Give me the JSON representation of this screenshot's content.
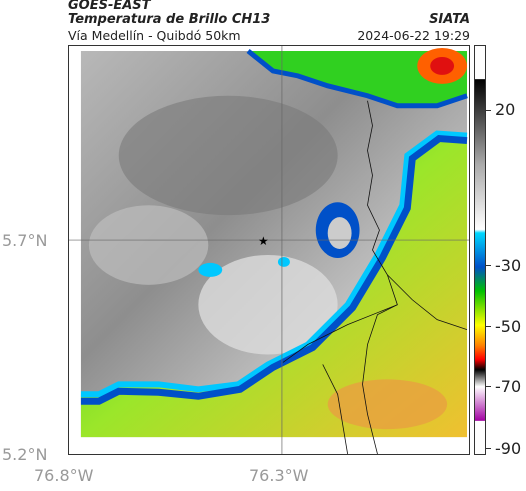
{
  "header": {
    "title": "GOES-EAST",
    "subtitle": "Temperatura de Brillo CH13",
    "region": "Vía Medellín - Quibdó 50km",
    "agency": "SIATA",
    "datetime": "2024-06-22 19:29"
  },
  "axes": {
    "y_ticks": [
      "5.7°N",
      "5.2°N"
    ],
    "x_ticks": [
      "76.8°W",
      "76.3°W"
    ]
  },
  "colorbar": {
    "ticks": [
      "20",
      "-30",
      "-50",
      "-70",
      "-90"
    ],
    "colors": [
      "#ffffff",
      "#cccccc",
      "#888888",
      "#00d8ff",
      "#0050c8",
      "#00c000",
      "#ffff00",
      "#ff8000",
      "#ff0000",
      "#000000",
      "#ffffff",
      "#a000a0"
    ]
  },
  "marker": {
    "symbol": "★"
  }
}
